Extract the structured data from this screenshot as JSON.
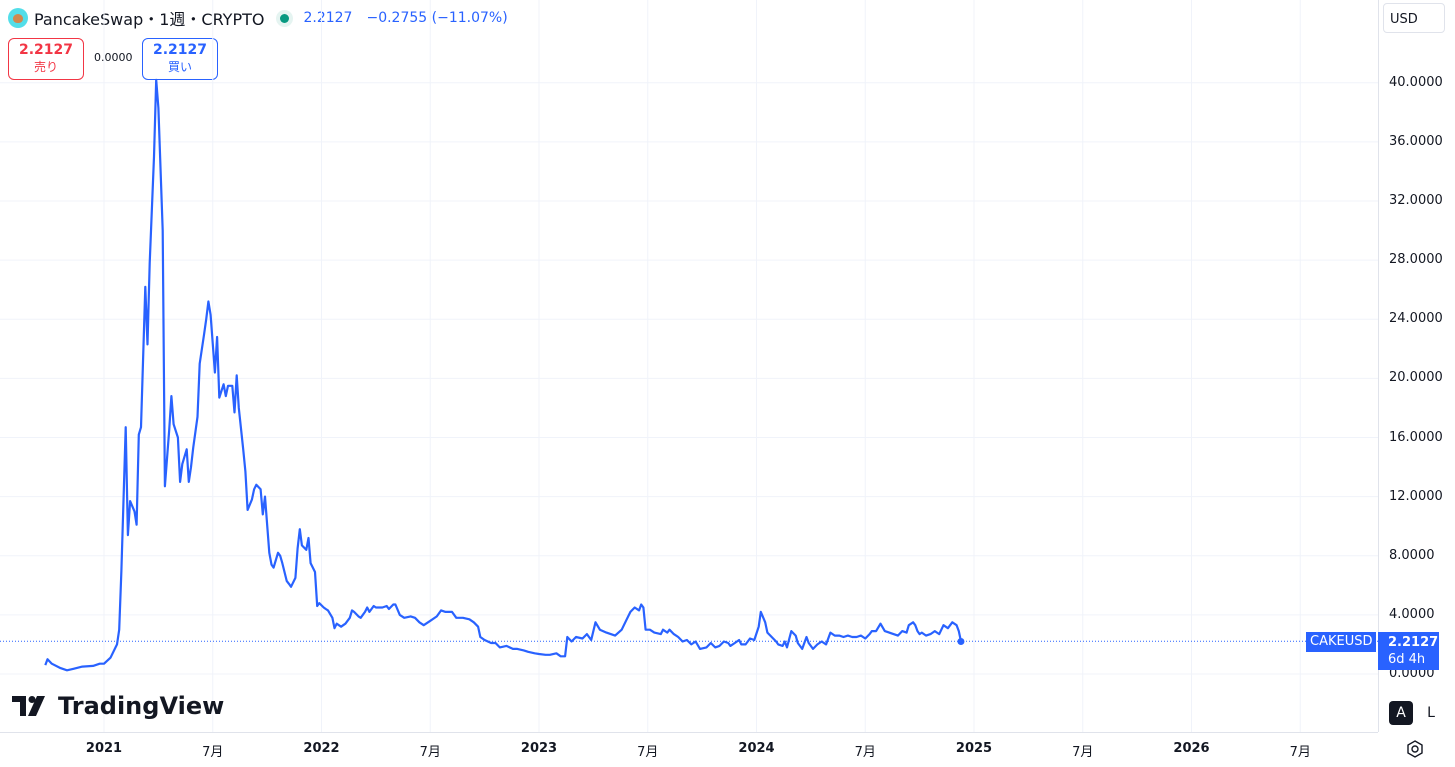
{
  "header": {
    "title": "PancakeSwap・1週・CRYPTO",
    "price": "2.2127",
    "change": "−0.2755 (−11.07%)",
    "status_dot_color": "#089981"
  },
  "trade": {
    "sell_price": "2.2127",
    "sell_label": "売り",
    "spread": "0.0000",
    "buy_price": "2.2127",
    "buy_label": "買い"
  },
  "currency": "USD",
  "price_tag": {
    "symbol": "CAKEUSD",
    "price": "2.2127",
    "countdown": "6d 4h"
  },
  "branding": {
    "name": "TradingView"
  },
  "scale_buttons": {
    "auto": "A",
    "log": "L"
  },
  "colors": {
    "line": "#2962ff",
    "sell": "#f23645",
    "buy": "#2962ff"
  },
  "chart_data": {
    "type": "line",
    "symbol": "CAKEUSD",
    "interval": "1週",
    "ylim": [
      0,
      40
    ],
    "y_ticks": [
      "0.0000",
      "4.0000",
      "8.0000",
      "12.0000",
      "16.0000",
      "20.0000",
      "24.0000",
      "28.0000",
      "32.0000",
      "36.0000",
      "40.0000"
    ],
    "x_ticks": [
      {
        "label": "2021",
        "year": true,
        "t": 2021.0
      },
      {
        "label": "7月",
        "year": false,
        "t": 2021.5
      },
      {
        "label": "2022",
        "year": true,
        "t": 2022.0
      },
      {
        "label": "7月",
        "year": false,
        "t": 2022.5
      },
      {
        "label": "2023",
        "year": true,
        "t": 2023.0
      },
      {
        "label": "7月",
        "year": false,
        "t": 2023.5
      },
      {
        "label": "2024",
        "year": true,
        "t": 2024.0
      },
      {
        "label": "7月",
        "year": false,
        "t": 2024.5
      },
      {
        "label": "2025",
        "year": true,
        "t": 2025.0
      },
      {
        "label": "7月",
        "year": false,
        "t": 2025.5
      },
      {
        "label": "2026",
        "year": true,
        "t": 2026.0
      },
      {
        "label": "7月",
        "year": false,
        "t": 2026.5
      }
    ],
    "last_value": 2.2127,
    "series": [
      {
        "points": [
          [
            2020.73,
            0.6
          ],
          [
            2020.74,
            1.0
          ],
          [
            2020.76,
            0.7
          ],
          [
            2020.8,
            0.4
          ],
          [
            2020.83,
            0.25
          ],
          [
            2020.86,
            0.35
          ],
          [
            2020.9,
            0.5
          ],
          [
            2020.95,
            0.55
          ],
          [
            2020.98,
            0.7
          ],
          [
            2021.0,
            0.7
          ],
          [
            2021.03,
            1.1
          ],
          [
            2021.06,
            2.0
          ],
          [
            2021.07,
            3.0
          ],
          [
            2021.08,
            7.0
          ],
          [
            2021.1,
            16.7
          ],
          [
            2021.11,
            9.4
          ],
          [
            2021.12,
            11.7
          ],
          [
            2021.14,
            11.0
          ],
          [
            2021.15,
            10.1
          ],
          [
            2021.16,
            16.2
          ],
          [
            2021.17,
            16.7
          ],
          [
            2021.19,
            26.2
          ],
          [
            2021.2,
            22.3
          ],
          [
            2021.21,
            27.8
          ],
          [
            2021.23,
            35.0
          ],
          [
            2021.24,
            40.2
          ],
          [
            2021.25,
            38.3
          ],
          [
            2021.27,
            30.0
          ],
          [
            2021.28,
            12.7
          ],
          [
            2021.3,
            16.5
          ],
          [
            2021.31,
            18.8
          ],
          [
            2021.32,
            16.9
          ],
          [
            2021.34,
            16.0
          ],
          [
            2021.35,
            13.0
          ],
          [
            2021.36,
            14.2
          ],
          [
            2021.38,
            15.2
          ],
          [
            2021.39,
            13.0
          ],
          [
            2021.4,
            14.0
          ],
          [
            2021.41,
            15.3
          ],
          [
            2021.43,
            17.4
          ],
          [
            2021.44,
            21.0
          ],
          [
            2021.46,
            23.0
          ],
          [
            2021.47,
            24.0
          ],
          [
            2021.48,
            25.2
          ],
          [
            2021.49,
            24.3
          ],
          [
            2021.51,
            20.4
          ],
          [
            2021.52,
            22.8
          ],
          [
            2021.53,
            18.7
          ],
          [
            2021.55,
            19.6
          ],
          [
            2021.56,
            18.8
          ],
          [
            2021.57,
            19.5
          ],
          [
            2021.59,
            19.5
          ],
          [
            2021.6,
            17.7
          ],
          [
            2021.61,
            20.2
          ],
          [
            2021.62,
            18.0
          ],
          [
            2021.64,
            15.2
          ],
          [
            2021.65,
            13.7
          ],
          [
            2021.66,
            11.1
          ],
          [
            2021.68,
            11.8
          ],
          [
            2021.69,
            12.5
          ],
          [
            2021.7,
            12.8
          ],
          [
            2021.72,
            12.5
          ],
          [
            2021.73,
            10.8
          ],
          [
            2021.74,
            12.0
          ],
          [
            2021.76,
            8.2
          ],
          [
            2021.77,
            7.4
          ],
          [
            2021.78,
            7.2
          ],
          [
            2021.8,
            8.2
          ],
          [
            2021.81,
            8.0
          ],
          [
            2021.82,
            7.5
          ],
          [
            2021.84,
            6.3
          ],
          [
            2021.85,
            6.1
          ],
          [
            2021.86,
            5.9
          ],
          [
            2021.88,
            6.5
          ],
          [
            2021.89,
            8.5
          ],
          [
            2021.9,
            9.8
          ],
          [
            2021.91,
            8.7
          ],
          [
            2021.93,
            8.4
          ],
          [
            2021.94,
            9.2
          ],
          [
            2021.95,
            7.5
          ],
          [
            2021.97,
            6.9
          ],
          [
            2021.98,
            4.6
          ],
          [
            2021.99,
            4.8
          ],
          [
            2022.01,
            4.5
          ],
          [
            2022.02,
            4.4
          ],
          [
            2022.03,
            4.3
          ],
          [
            2022.05,
            3.8
          ],
          [
            2022.06,
            3.1
          ],
          [
            2022.07,
            3.4
          ],
          [
            2022.09,
            3.2
          ],
          [
            2022.1,
            3.3
          ],
          [
            2022.11,
            3.4
          ],
          [
            2022.13,
            3.8
          ],
          [
            2022.14,
            4.3
          ],
          [
            2022.15,
            4.2
          ],
          [
            2022.17,
            3.9
          ],
          [
            2022.18,
            3.8
          ],
          [
            2022.2,
            4.2
          ],
          [
            2022.21,
            4.5
          ],
          [
            2022.22,
            4.2
          ],
          [
            2022.24,
            4.6
          ],
          [
            2022.25,
            4.5
          ],
          [
            2022.28,
            4.5
          ],
          [
            2022.3,
            4.6
          ],
          [
            2022.31,
            4.4
          ],
          [
            2022.33,
            4.7
          ],
          [
            2022.34,
            4.7
          ],
          [
            2022.36,
            4.0
          ],
          [
            2022.38,
            3.8
          ],
          [
            2022.41,
            3.9
          ],
          [
            2022.43,
            3.8
          ],
          [
            2022.45,
            3.5
          ],
          [
            2022.47,
            3.3
          ],
          [
            2022.5,
            3.6
          ],
          [
            2022.53,
            3.9
          ],
          [
            2022.55,
            4.3
          ],
          [
            2022.57,
            4.2
          ],
          [
            2022.6,
            4.2
          ],
          [
            2022.62,
            3.8
          ],
          [
            2022.65,
            3.8
          ],
          [
            2022.68,
            3.7
          ],
          [
            2022.7,
            3.5
          ],
          [
            2022.72,
            3.2
          ],
          [
            2022.73,
            2.5
          ],
          [
            2022.75,
            2.3
          ],
          [
            2022.78,
            2.1
          ],
          [
            2022.8,
            2.1
          ],
          [
            2022.82,
            1.8
          ],
          [
            2022.85,
            1.9
          ],
          [
            2022.88,
            1.7
          ],
          [
            2022.9,
            1.7
          ],
          [
            2022.93,
            1.6
          ],
          [
            2022.95,
            1.5
          ],
          [
            2022.98,
            1.4
          ],
          [
            2023.0,
            1.35
          ],
          [
            2023.03,
            1.3
          ],
          [
            2023.05,
            1.3
          ],
          [
            2023.08,
            1.4
          ],
          [
            2023.1,
            1.2
          ],
          [
            2023.12,
            1.2
          ],
          [
            2023.13,
            2.5
          ],
          [
            2023.15,
            2.2
          ],
          [
            2023.17,
            2.5
          ],
          [
            2023.2,
            2.4
          ],
          [
            2023.22,
            2.7
          ],
          [
            2023.24,
            2.3
          ],
          [
            2023.26,
            3.5
          ],
          [
            2023.28,
            3.0
          ],
          [
            2023.31,
            2.8
          ],
          [
            2023.35,
            2.6
          ],
          [
            2023.38,
            3.0
          ],
          [
            2023.4,
            3.6
          ],
          [
            2023.42,
            4.2
          ],
          [
            2023.44,
            4.5
          ],
          [
            2023.46,
            4.3
          ],
          [
            2023.47,
            4.7
          ],
          [
            2023.48,
            4.5
          ],
          [
            2023.49,
            3.0
          ],
          [
            2023.51,
            3.0
          ],
          [
            2023.53,
            2.8
          ],
          [
            2023.56,
            2.7
          ],
          [
            2023.57,
            3.0
          ],
          [
            2023.59,
            2.8
          ],
          [
            2023.6,
            3.0
          ],
          [
            2023.62,
            2.7
          ],
          [
            2023.64,
            2.5
          ],
          [
            2023.66,
            2.2
          ],
          [
            2023.68,
            2.3
          ],
          [
            2023.7,
            2.0
          ],
          [
            2023.72,
            2.2
          ],
          [
            2023.74,
            1.7
          ],
          [
            2023.77,
            1.8
          ],
          [
            2023.79,
            2.1
          ],
          [
            2023.81,
            1.8
          ],
          [
            2023.83,
            1.9
          ],
          [
            2023.85,
            2.2
          ],
          [
            2023.87,
            2.1
          ],
          [
            2023.88,
            1.9
          ],
          [
            2023.9,
            2.1
          ],
          [
            2023.92,
            2.3
          ],
          [
            2023.93,
            2.0
          ],
          [
            2023.95,
            2.0
          ],
          [
            2023.97,
            2.4
          ],
          [
            2023.99,
            2.3
          ],
          [
            2024.01,
            3.2
          ],
          [
            2024.02,
            4.2
          ],
          [
            2024.04,
            3.5
          ],
          [
            2024.05,
            2.8
          ],
          [
            2024.07,
            2.5
          ],
          [
            2024.09,
            2.2
          ],
          [
            2024.1,
            2.0
          ],
          [
            2024.12,
            1.9
          ],
          [
            2024.13,
            2.2
          ],
          [
            2024.14,
            1.8
          ],
          [
            2024.16,
            2.9
          ],
          [
            2024.18,
            2.6
          ],
          [
            2024.19,
            2.1
          ],
          [
            2024.21,
            1.7
          ],
          [
            2024.23,
            2.5
          ],
          [
            2024.24,
            2.1
          ],
          [
            2024.26,
            1.7
          ],
          [
            2024.28,
            2.0
          ],
          [
            2024.3,
            2.2
          ],
          [
            2024.32,
            2.0
          ],
          [
            2024.34,
            2.8
          ],
          [
            2024.36,
            2.6
          ],
          [
            2024.38,
            2.6
          ],
          [
            2024.4,
            2.5
          ],
          [
            2024.42,
            2.6
          ],
          [
            2024.44,
            2.5
          ],
          [
            2024.46,
            2.5
          ],
          [
            2024.48,
            2.6
          ],
          [
            2024.5,
            2.4
          ],
          [
            2024.52,
            2.7
          ],
          [
            2024.53,
            2.9
          ],
          [
            2024.55,
            2.9
          ],
          [
            2024.57,
            3.4
          ],
          [
            2024.59,
            2.9
          ],
          [
            2024.61,
            2.8
          ],
          [
            2024.63,
            2.7
          ],
          [
            2024.65,
            2.6
          ],
          [
            2024.67,
            2.9
          ],
          [
            2024.69,
            2.8
          ],
          [
            2024.7,
            3.3
          ],
          [
            2024.72,
            3.5
          ],
          [
            2024.73,
            3.3
          ],
          [
            2024.74,
            2.9
          ],
          [
            2024.75,
            2.7
          ],
          [
            2024.76,
            2.8
          ],
          [
            2024.78,
            2.6
          ],
          [
            2024.8,
            2.7
          ],
          [
            2024.82,
            2.9
          ],
          [
            2024.84,
            2.7
          ],
          [
            2024.86,
            3.3
          ],
          [
            2024.88,
            3.1
          ],
          [
            2024.9,
            3.5
          ],
          [
            2024.92,
            3.3
          ],
          [
            2024.93,
            2.9
          ],
          [
            2024.94,
            2.2
          ]
        ]
      }
    ]
  }
}
